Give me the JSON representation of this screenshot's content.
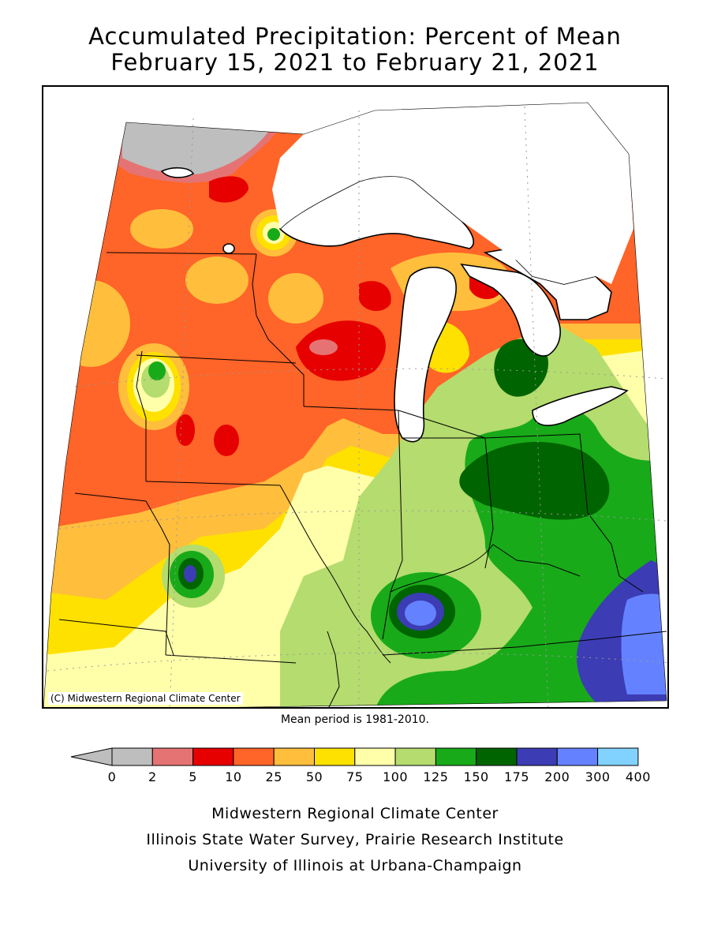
{
  "header": {
    "title_line1": "Accumulated Precipitation: Percent of Mean",
    "title_line2": "February 15, 2021 to February 21, 2021"
  },
  "map": {
    "copyright": "(C) Midwestern Regional Climate Center",
    "mean_period": "Mean period is 1981-2010."
  },
  "legend": {
    "ticks": [
      "0",
      "2",
      "5",
      "10",
      "25",
      "50",
      "75",
      "100",
      "125",
      "150",
      "175",
      "200",
      "300",
      "400"
    ],
    "colors": [
      "#bebebe",
      "#e67373",
      "#e60000",
      "#ff6428",
      "#ffbe3c",
      "#ffe100",
      "#ffffaa",
      "#b4dc6e",
      "#19aa19",
      "#006400",
      "#3c3cb4",
      "#6482ff",
      "#82d2ff"
    ],
    "under_color": "#bebebe"
  },
  "footer": {
    "line1": "Midwestern Regional Climate Center",
    "line2": "Illinois State Water Survey, Prairie Research Institute",
    "line3": "University of Illinois at Urbana-Champaign"
  }
}
